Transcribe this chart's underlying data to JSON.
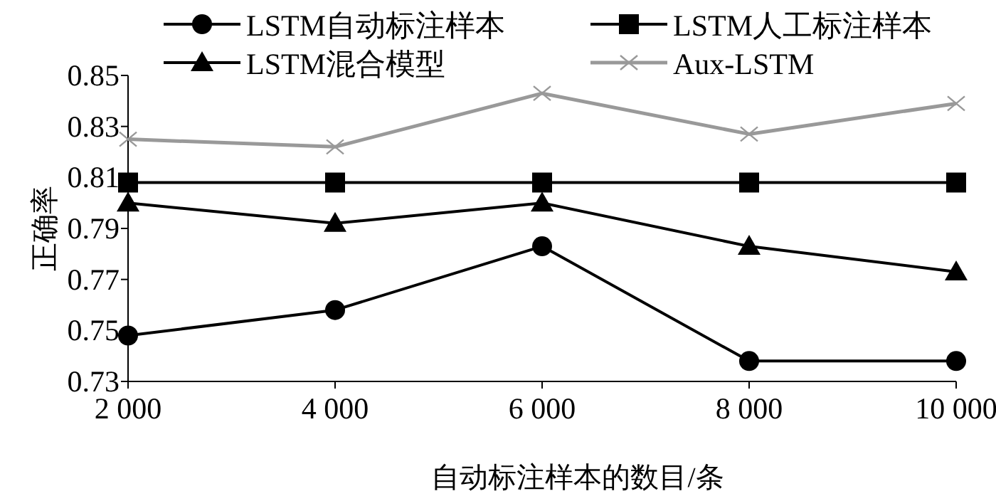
{
  "chart_data": {
    "type": "line",
    "xlabel": "自动标注样本的数目/条",
    "ylabel": "正确率",
    "x": [
      2000,
      4000,
      6000,
      8000,
      10000
    ],
    "xlim": [
      2000,
      10000
    ],
    "xticks": [
      {
        "value": 2000,
        "label": "2 000"
      },
      {
        "value": 4000,
        "label": "4 000"
      },
      {
        "value": 6000,
        "label": "6 000"
      },
      {
        "value": 8000,
        "label": "8 000"
      },
      {
        "value": 10000,
        "label": "10 000"
      }
    ],
    "ylim": [
      0.73,
      0.85
    ],
    "yticks": [
      0.73,
      0.75,
      0.77,
      0.79,
      0.81,
      0.83,
      0.85
    ],
    "legend": "top",
    "grid": false,
    "series": [
      {
        "name": "LSTM自动标注样本",
        "color": "#000000",
        "marker": "circle",
        "values": [
          0.748,
          0.758,
          0.783,
          0.738,
          0.738
        ]
      },
      {
        "name": "LSTM人工标注样本",
        "color": "#000000",
        "marker": "square",
        "values": [
          0.808,
          0.808,
          0.808,
          0.808,
          0.808
        ]
      },
      {
        "name": "LSTM混合模型",
        "color": "#000000",
        "marker": "triangle",
        "values": [
          0.8,
          0.792,
          0.8,
          0.783,
          0.773
        ]
      },
      {
        "name": "Aux-LSTM",
        "color": "#999999",
        "marker": "cross",
        "values": [
          0.825,
          0.822,
          0.843,
          0.827,
          0.839
        ]
      }
    ]
  }
}
